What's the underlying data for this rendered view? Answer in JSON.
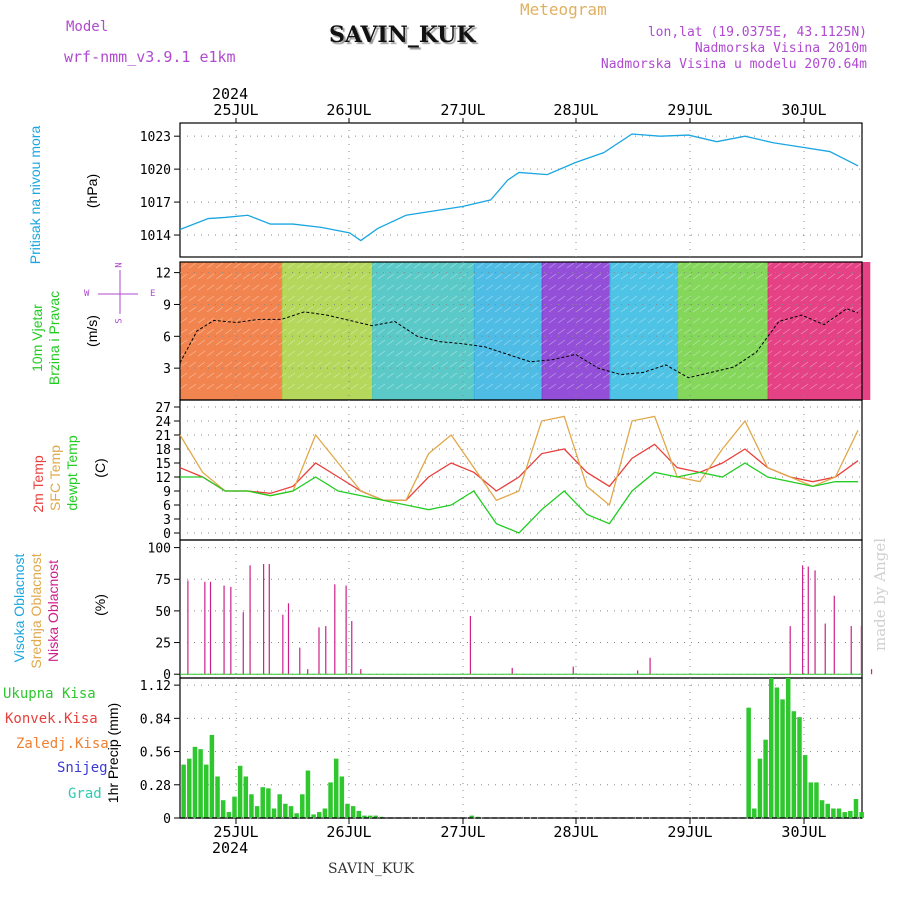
{
  "header": {
    "model_label": "Model",
    "model_name": "wrf-nmm_v3.9.1 e1km",
    "station": "SAVIN_KUK",
    "meteogram": "Meteogram",
    "lonlat": "lon,lat (19.0375E, 43.1125N)",
    "altitude": "Nadmorska Visina 2010m",
    "model_altitude": "Nadmorska Visina u modelu 2070.64m",
    "year": "2024",
    "footer_station": "SAVIN_KUK",
    "watermark": "made by Angel"
  },
  "days": [
    "25JUL",
    "26JUL",
    "27JUL",
    "28JUL",
    "29JUL",
    "30JUL"
  ],
  "panel_labels": {
    "pressure": [
      "Pritisak na nivou mora"
    ],
    "pressure_unit": "(hPa)",
    "wind": [
      "10m Vjetar",
      "Brzina i Pravac"
    ],
    "wind_unit": "(m/s)",
    "wind_compass": {
      "n": "N",
      "w": "W",
      "e": "E",
      "s": "S"
    },
    "temp": [
      "2m Temp",
      "SFC Temp",
      "dewpt Temp"
    ],
    "temp_unit": "(C)",
    "cloud": [
      "Visoka Oblacnost",
      "Srednja Oblacnost",
      "Niska Oblacnost"
    ],
    "cloud_unit": "(%)",
    "precip": [
      "Ukupna Kisa",
      "Konvek.Kisa",
      "Zaledj.Kisa",
      "Snijeg",
      "Grad"
    ],
    "precip_unit": "1hr Precip (mm)"
  },
  "colors": {
    "pressure": "#1aa6e0",
    "t2m": "#e8403c",
    "sfc": "#e0a84a",
    "dew": "#22cc22",
    "cloud_low": "#cc1f8a",
    "precip_total": "#2ec72e",
    "conv": "#e8403c",
    "frz": "#f08030",
    "snow": "#3a3ad8",
    "hail": "#2ecbb2",
    "model": "#b04ad0"
  },
  "chart_data": [
    {
      "type": "line",
      "name": "pressure",
      "ylabel": "(hPa)",
      "x_range": [
        0,
        6
      ],
      "ylim": [
        1012,
        1024.2
      ],
      "yticks": [
        1014,
        1017,
        1020,
        1023
      ],
      "x": [
        0,
        0.25,
        0.4,
        0.6,
        0.8,
        1.0,
        1.25,
        1.5,
        1.6,
        1.75,
        2.0,
        2.25,
        2.5,
        2.75,
        2.9,
        3.0,
        3.25,
        3.5,
        3.75,
        4.0,
        4.25,
        4.5,
        4.75,
        5.0,
        5.25,
        5.5,
        5.75,
        6.0
      ],
      "y": [
        1014.5,
        1015.5,
        1015.6,
        1015.8,
        1015.0,
        1015.0,
        1014.7,
        1014.2,
        1013.5,
        1014.6,
        1015.8,
        1016.2,
        1016.6,
        1017.2,
        1019.0,
        1019.7,
        1019.5,
        1020.6,
        1021.5,
        1023.2,
        1023.0,
        1023.1,
        1022.5,
        1023.0,
        1022.4,
        1022.0,
        1021.6,
        1020.3
      ]
    },
    {
      "type": "line",
      "name": "wind_speed",
      "ylabel": "(m/s)",
      "x_range": [
        0,
        6
      ],
      "ylim": [
        0,
        13
      ],
      "yticks": [
        3,
        6,
        9,
        12
      ],
      "x": [
        0,
        0.15,
        0.3,
        0.5,
        0.7,
        0.9,
        1.1,
        1.3,
        1.5,
        1.7,
        1.9,
        2.1,
        2.3,
        2.5,
        2.7,
        2.9,
        3.1,
        3.3,
        3.5,
        3.7,
        3.9,
        4.1,
        4.3,
        4.5,
        4.7,
        4.9,
        5.1,
        5.3,
        5.5,
        5.7,
        5.9,
        6.0
      ],
      "y": [
        3.5,
        6.5,
        7.5,
        7.3,
        7.6,
        7.6,
        8.3,
        8.0,
        7.5,
        7.0,
        7.4,
        6.0,
        5.5,
        5.3,
        5.0,
        4.3,
        3.6,
        3.8,
        4.3,
        3.0,
        2.4,
        2.6,
        3.3,
        2.1,
        2.6,
        3.1,
        4.5,
        7.4,
        8.0,
        7.1,
        8.6,
        8.2
      ]
    },
    {
      "type": "line",
      "name": "temperature",
      "ylabel": "(C)",
      "x_range": [
        0,
        6
      ],
      "ylim": [
        -1.5,
        28.5
      ],
      "yticks": [
        0,
        3,
        6,
        9,
        12,
        15,
        18,
        21,
        24,
        27
      ],
      "series": [
        {
          "name": "2m Temp",
          "color": "#e8403c",
          "x": [
            0,
            0.2,
            0.4,
            0.6,
            0.8,
            1.0,
            1.2,
            1.4,
            1.6,
            1.8,
            2.0,
            2.2,
            2.4,
            2.6,
            2.8,
            3.0,
            3.2,
            3.4,
            3.6,
            3.8,
            4.0,
            4.2,
            4.4,
            4.6,
            4.8,
            5.0,
            5.2,
            5.4,
            5.6,
            5.8,
            6.0
          ],
          "y": [
            14,
            12,
            9,
            9,
            8.5,
            10,
            15,
            12,
            9,
            7,
            7,
            12,
            15,
            13,
            9,
            12,
            17,
            18,
            13,
            10,
            16,
            19,
            14,
            13,
            15,
            18,
            14,
            12,
            11,
            12,
            15.5
          ]
        },
        {
          "name": "SFC Temp",
          "color": "#e0a84a",
          "x": [
            0,
            0.2,
            0.4,
            0.6,
            0.8,
            1.0,
            1.2,
            1.4,
            1.6,
            1.8,
            2.0,
            2.2,
            2.4,
            2.6,
            2.8,
            3.0,
            3.2,
            3.4,
            3.6,
            3.8,
            4.0,
            4.2,
            4.4,
            4.6,
            4.8,
            5.0,
            5.2,
            5.4,
            5.6,
            5.8,
            6.0
          ],
          "y": [
            21,
            13,
            9,
            9,
            8,
            9,
            21,
            15,
            9,
            7,
            7,
            17,
            21,
            14,
            7,
            9,
            24,
            25,
            10,
            6,
            24,
            25,
            12,
            11,
            18,
            24,
            14,
            12,
            10,
            12,
            22
          ]
        },
        {
          "name": "dewpt Temp",
          "color": "#22cc22",
          "x": [
            0,
            0.2,
            0.4,
            0.6,
            0.8,
            1.0,
            1.2,
            1.4,
            1.6,
            1.8,
            2.0,
            2.2,
            2.4,
            2.6,
            2.8,
            3.0,
            3.2,
            3.4,
            3.6,
            3.8,
            4.0,
            4.2,
            4.4,
            4.6,
            4.8,
            5.0,
            5.2,
            5.4,
            5.6,
            5.8,
            6.0
          ],
          "y": [
            12,
            12,
            9,
            9,
            8,
            9,
            12,
            9,
            8,
            7,
            6,
            5,
            6,
            9,
            2,
            0,
            5,
            9,
            4,
            2,
            9,
            13,
            12,
            13,
            12,
            15,
            12,
            11,
            10,
            11,
            11
          ]
        }
      ]
    },
    {
      "type": "bar",
      "name": "cloud_cover",
      "ylabel": "(%)",
      "x_range": [
        0,
        6
      ],
      "ylim": [
        -3,
        106
      ],
      "yticks": [
        0,
        25,
        50,
        75,
        100
      ],
      "series": [
        {
          "name": "Niska Oblacnost",
          "color": "#cc1f8a",
          "x": [
            0.07,
            0.22,
            0.27,
            0.39,
            0.45,
            0.56,
            0.62,
            0.74,
            0.79,
            0.91,
            0.96,
            1.06,
            1.13,
            1.23,
            1.29,
            1.37,
            1.47,
            1.52,
            1.6,
            2.57,
            2.94,
            3.48,
            4.05,
            4.16,
            5.4,
            5.51,
            5.56,
            5.62,
            5.71,
            5.79,
            5.94,
            6.03,
            6.12
          ],
          "values": [
            74,
            73,
            73,
            70,
            69,
            49,
            86,
            87,
            87,
            47,
            56,
            21,
            4,
            37,
            38,
            71,
            70,
            42,
            4,
            46,
            5,
            6,
            3,
            13,
            38,
            86,
            85,
            82,
            40,
            62,
            38,
            38,
            4
          ]
        }
      ]
    },
    {
      "type": "bar",
      "name": "precipitation",
      "ylabel": "1hr Precip (mm)",
      "x_range": [
        0,
        6
      ],
      "ylim": [
        0,
        1.18
      ],
      "yticks": [
        0,
        0.28,
        0.56,
        0.84,
        1.12
      ],
      "series": [
        {
          "name": "Ukupna Kisa",
          "color": "#2ec72e",
          "x": [
            0.03,
            0.08,
            0.13,
            0.18,
            0.23,
            0.28,
            0.33,
            0.38,
            0.43,
            0.48,
            0.53,
            0.58,
            0.63,
            0.68,
            0.73,
            0.78,
            0.83,
            0.88,
            0.93,
            0.98,
            1.03,
            1.08,
            1.13,
            1.18,
            1.23,
            1.28,
            1.33,
            1.38,
            1.43,
            1.48,
            1.53,
            1.58,
            1.63,
            1.68,
            1.73,
            1.78,
            2.58,
            2.63,
            5.03,
            5.08,
            5.13,
            5.18,
            5.23,
            5.28,
            5.33,
            5.38,
            5.43,
            5.48,
            5.53,
            5.58,
            5.63,
            5.68,
            5.73,
            5.78,
            5.83,
            5.88,
            5.93,
            5.98,
            6.03
          ],
          "values": [
            0.45,
            0.5,
            0.6,
            0.58,
            0.45,
            0.7,
            0.35,
            0.15,
            0.05,
            0.18,
            0.44,
            0.35,
            0.2,
            0.1,
            0.26,
            0.25,
            0.08,
            0.2,
            0.12,
            0.1,
            0.04,
            0.2,
            0.4,
            0.03,
            0.05,
            0.08,
            0.3,
            0.5,
            0.35,
            0.12,
            0.1,
            0.06,
            0.02,
            0.02,
            0.02,
            0.01,
            0.02,
            0.01,
            0.93,
            0.08,
            0.5,
            0.66,
            1.28,
            1.1,
            1.0,
            1.18,
            0.9,
            0.85,
            0.53,
            0.3,
            0.3,
            0.15,
            0.12,
            0.08,
            0.08,
            0.05,
            0.06,
            0.16,
            0.05
          ]
        }
      ]
    }
  ]
}
